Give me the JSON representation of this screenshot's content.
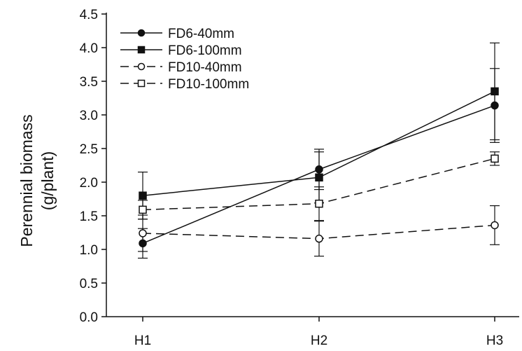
{
  "chart_data": {
    "type": "line",
    "ylabel": [
      "Perennial biomass",
      "(g/plant)"
    ],
    "xlabel": "",
    "categories": [
      "H1",
      "H2",
      "H3"
    ],
    "ylim": [
      0,
      4.5
    ],
    "yticks": [
      "0.0",
      "0.5",
      "1.0",
      "1.5",
      "2.0",
      "2.5",
      "3.0",
      "3.5",
      "4.0",
      "4.5"
    ],
    "grid": false,
    "legend_position": "top-left",
    "series": [
      {
        "name": "FD6-40mm",
        "values": [
          1.09,
          2.19,
          3.14
        ],
        "errors": [
          0.22,
          0.3,
          0.55
        ],
        "marker": "circle",
        "filled": true,
        "dashed": false
      },
      {
        "name": "FD6-100mm",
        "values": [
          1.8,
          2.07,
          3.35
        ],
        "errors": [
          0.35,
          0.38,
          0.72
        ],
        "marker": "square",
        "filled": true,
        "dashed": false
      },
      {
        "name": "FD10-40mm",
        "values": [
          1.24,
          1.16,
          1.36
        ],
        "errors": [
          0.27,
          0.26,
          0.29
        ],
        "marker": "circle",
        "filled": false,
        "dashed": true
      },
      {
        "name": "FD10-100mm",
        "values": [
          1.59,
          1.68,
          2.35
        ],
        "errors": [
          0.14,
          0.25,
          0.1
        ],
        "marker": "square",
        "filled": false,
        "dashed": true
      }
    ]
  }
}
